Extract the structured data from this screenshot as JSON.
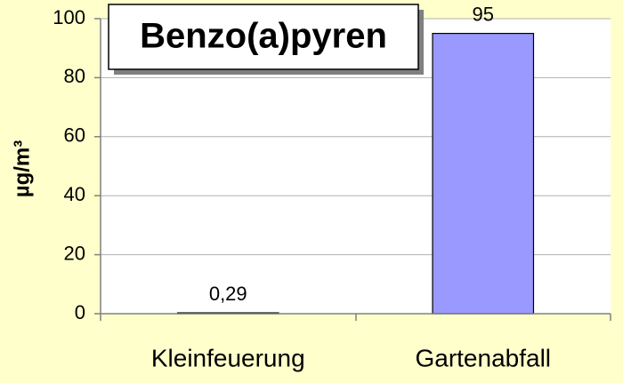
{
  "chart_data": {
    "type": "bar",
    "title": "Benzo(a)pyren",
    "y_label": "µg/m³",
    "categories": [
      "Kleinfeuerung",
      "Gartenabfall"
    ],
    "values": [
      0.29,
      95
    ],
    "value_labels": [
      "0,29",
      "95"
    ],
    "color": "#9999ff",
    "ylim": [
      0,
      100
    ],
    "yticks": [
      0,
      20,
      40,
      60,
      80,
      100
    ],
    "grid": true
  }
}
